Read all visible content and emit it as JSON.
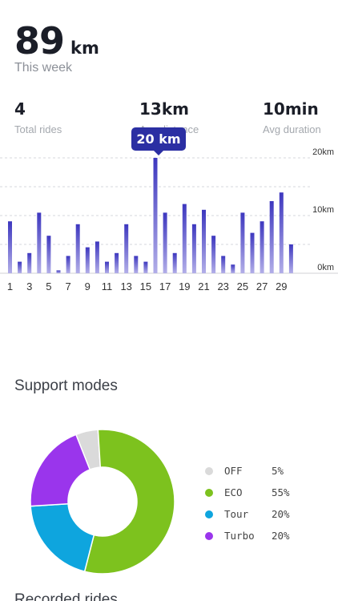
{
  "weekly": {
    "distance_value": "89",
    "distance_unit": "km",
    "period_label": "This week"
  },
  "stats": [
    {
      "value": "4",
      "label": "Total rides"
    },
    {
      "value": "13km",
      "label": "Avg distance"
    },
    {
      "value": "10min",
      "label": "Avg duration"
    }
  ],
  "tooltip": {
    "text": "20 km"
  },
  "chart_data": {
    "type": "bar",
    "categories": [
      "1",
      "2",
      "3",
      "4",
      "5",
      "6",
      "7",
      "8",
      "9",
      "10",
      "11",
      "12",
      "13",
      "14",
      "15",
      "16",
      "17",
      "18",
      "19",
      "20",
      "21",
      "22",
      "23",
      "24",
      "25",
      "26",
      "27",
      "28",
      "29",
      "30"
    ],
    "x_tick_labels": [
      "1",
      "3",
      "5",
      "7",
      "9",
      "11",
      "13",
      "15",
      "17",
      "19",
      "21",
      "23",
      "25",
      "27",
      "29"
    ],
    "values": [
      9,
      2,
      3.5,
      10.5,
      6.5,
      0.5,
      3,
      8.5,
      4.5,
      5.5,
      2,
      3.5,
      8.5,
      3,
      2,
      20,
      10.5,
      3.5,
      12,
      8.5,
      11,
      6.5,
      3,
      1.5,
      10.5,
      7,
      9,
      12.5,
      14,
      5
    ],
    "y_tick_labels": [
      "20km",
      "10km",
      "0km"
    ],
    "ylim": [
      0,
      20
    ],
    "grid": true,
    "colors": {
      "bar_top": "#3d37bf",
      "bar_bottom": "#b2aee8",
      "grid": "#d5d7dc"
    }
  },
  "support_modes": {
    "title": "Support modes",
    "items": [
      {
        "name": "OFF",
        "percent": "5%",
        "value": 5,
        "color": "#dadada"
      },
      {
        "name": "ECO",
        "percent": "55%",
        "value": 55,
        "color": "#7dc21e"
      },
      {
        "name": "Tour",
        "percent": "20%",
        "value": 20,
        "color": "#0ea5de"
      },
      {
        "name": "Turbo",
        "percent": "20%",
        "value": 20,
        "color": "#9a35ec"
      }
    ]
  },
  "next_section": {
    "title": "Recorded rides"
  }
}
